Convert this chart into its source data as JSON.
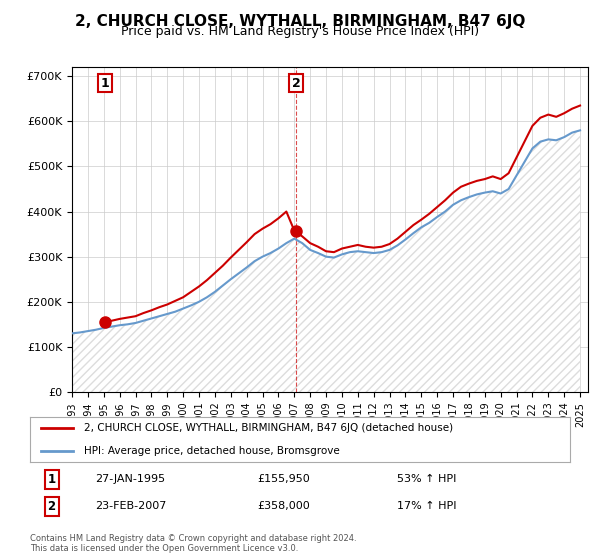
{
  "title": "2, CHURCH CLOSE, WYTHALL, BIRMINGHAM, B47 6JQ",
  "subtitle": "Price paid vs. HM Land Registry's House Price Index (HPI)",
  "legend_line1": "2, CHURCH CLOSE, WYTHALL, BIRMINGHAM, B47 6JQ (detached house)",
  "legend_line2": "HPI: Average price, detached house, Bromsgrove",
  "sale1_label": "1",
  "sale1_date": "27-JAN-1995",
  "sale1_price": "£155,950",
  "sale1_info": "53% ↑ HPI",
  "sale2_label": "2",
  "sale2_date": "23-FEB-2007",
  "sale2_price": "£358,000",
  "sale2_info": "17% ↑ HPI",
  "copyright": "Contains HM Land Registry data © Crown copyright and database right 2024.\nThis data is licensed under the Open Government Licence v3.0.",
  "property_color": "#cc0000",
  "hpi_color": "#6699cc",
  "hpi_fill_color": "#cce0ff",
  "background_color": "#ffffff",
  "grid_color": "#cccccc",
  "hatch_color": "#dddddd",
  "ylim": [
    0,
    720000
  ],
  "yticks": [
    0,
    100000,
    200000,
    300000,
    400000,
    500000,
    600000,
    700000
  ],
  "xlim_start": 1993.0,
  "xlim_end": 2025.5,
  "vline_x": 2007.12,
  "sale1_x": 1995.07,
  "sale1_y": 155950,
  "sale2_x": 2007.12,
  "sale2_y": 358000,
  "hpi_years": [
    1993,
    1993.5,
    1994,
    1994.5,
    1995,
    1995.5,
    1996,
    1996.5,
    1997,
    1997.5,
    1998,
    1998.5,
    1999,
    1999.5,
    2000,
    2000.5,
    2001,
    2001.5,
    2002,
    2002.5,
    2003,
    2003.5,
    2004,
    2004.5,
    2005,
    2005.5,
    2006,
    2006.5,
    2007,
    2007.5,
    2008,
    2008.5,
    2009,
    2009.5,
    2010,
    2010.5,
    2011,
    2011.5,
    2012,
    2012.5,
    2013,
    2013.5,
    2014,
    2014.5,
    2015,
    2015.5,
    2016,
    2016.5,
    2017,
    2017.5,
    2018,
    2018.5,
    2019,
    2019.5,
    2020,
    2020.5,
    2021,
    2021.5,
    2022,
    2022.5,
    2023,
    2023.5,
    2024,
    2024.5,
    2025
  ],
  "hpi_values": [
    130000,
    132000,
    135000,
    138000,
    142000,
    145000,
    148000,
    150000,
    153000,
    158000,
    163000,
    168000,
    173000,
    178000,
    185000,
    192000,
    200000,
    210000,
    222000,
    236000,
    250000,
    263000,
    276000,
    290000,
    300000,
    308000,
    318000,
    330000,
    340000,
    330000,
    315000,
    308000,
    300000,
    298000,
    305000,
    310000,
    312000,
    310000,
    308000,
    310000,
    315000,
    325000,
    338000,
    352000,
    365000,
    375000,
    388000,
    400000,
    415000,
    425000,
    432000,
    438000,
    442000,
    445000,
    440000,
    450000,
    480000,
    510000,
    540000,
    555000,
    560000,
    558000,
    565000,
    575000,
    580000
  ],
  "prop_years": [
    1993,
    1993.5,
    1994,
    1994.5,
    1995,
    1995.5,
    1996,
    1996.5,
    1997,
    1997.5,
    1998,
    1998.5,
    1999,
    1999.5,
    2000,
    2000.5,
    2001,
    2001.5,
    2002,
    2002.5,
    2003,
    2003.5,
    2004,
    2004.5,
    2005,
    2005.5,
    2006,
    2006.5,
    2007,
    2007.5,
    2008,
    2008.5,
    2009,
    2009.5,
    2010,
    2010.5,
    2011,
    2011.5,
    2012,
    2012.5,
    2013,
    2013.5,
    2014,
    2014.5,
    2015,
    2015.5,
    2016,
    2016.5,
    2017,
    2017.5,
    2018,
    2018.5,
    2019,
    2019.5,
    2020,
    2020.5,
    2021,
    2021.5,
    2022,
    2022.5,
    2023,
    2023.5,
    2024,
    2024.5,
    2025
  ],
  "prop_values": [
    null,
    null,
    null,
    null,
    155950,
    158000,
    162000,
    165000,
    168000,
    175000,
    181000,
    188000,
    194000,
    202000,
    210000,
    222000,
    234000,
    248000,
    264000,
    280000,
    298000,
    315000,
    332000,
    350000,
    362000,
    372000,
    385000,
    400000,
    358000,
    345000,
    330000,
    322000,
    312000,
    310000,
    318000,
    322000,
    326000,
    322000,
    320000,
    322000,
    328000,
    340000,
    355000,
    370000,
    382000,
    395000,
    410000,
    425000,
    442000,
    455000,
    462000,
    468000,
    472000,
    478000,
    472000,
    485000,
    520000,
    555000,
    590000,
    608000,
    615000,
    610000,
    618000,
    628000,
    635000
  ]
}
